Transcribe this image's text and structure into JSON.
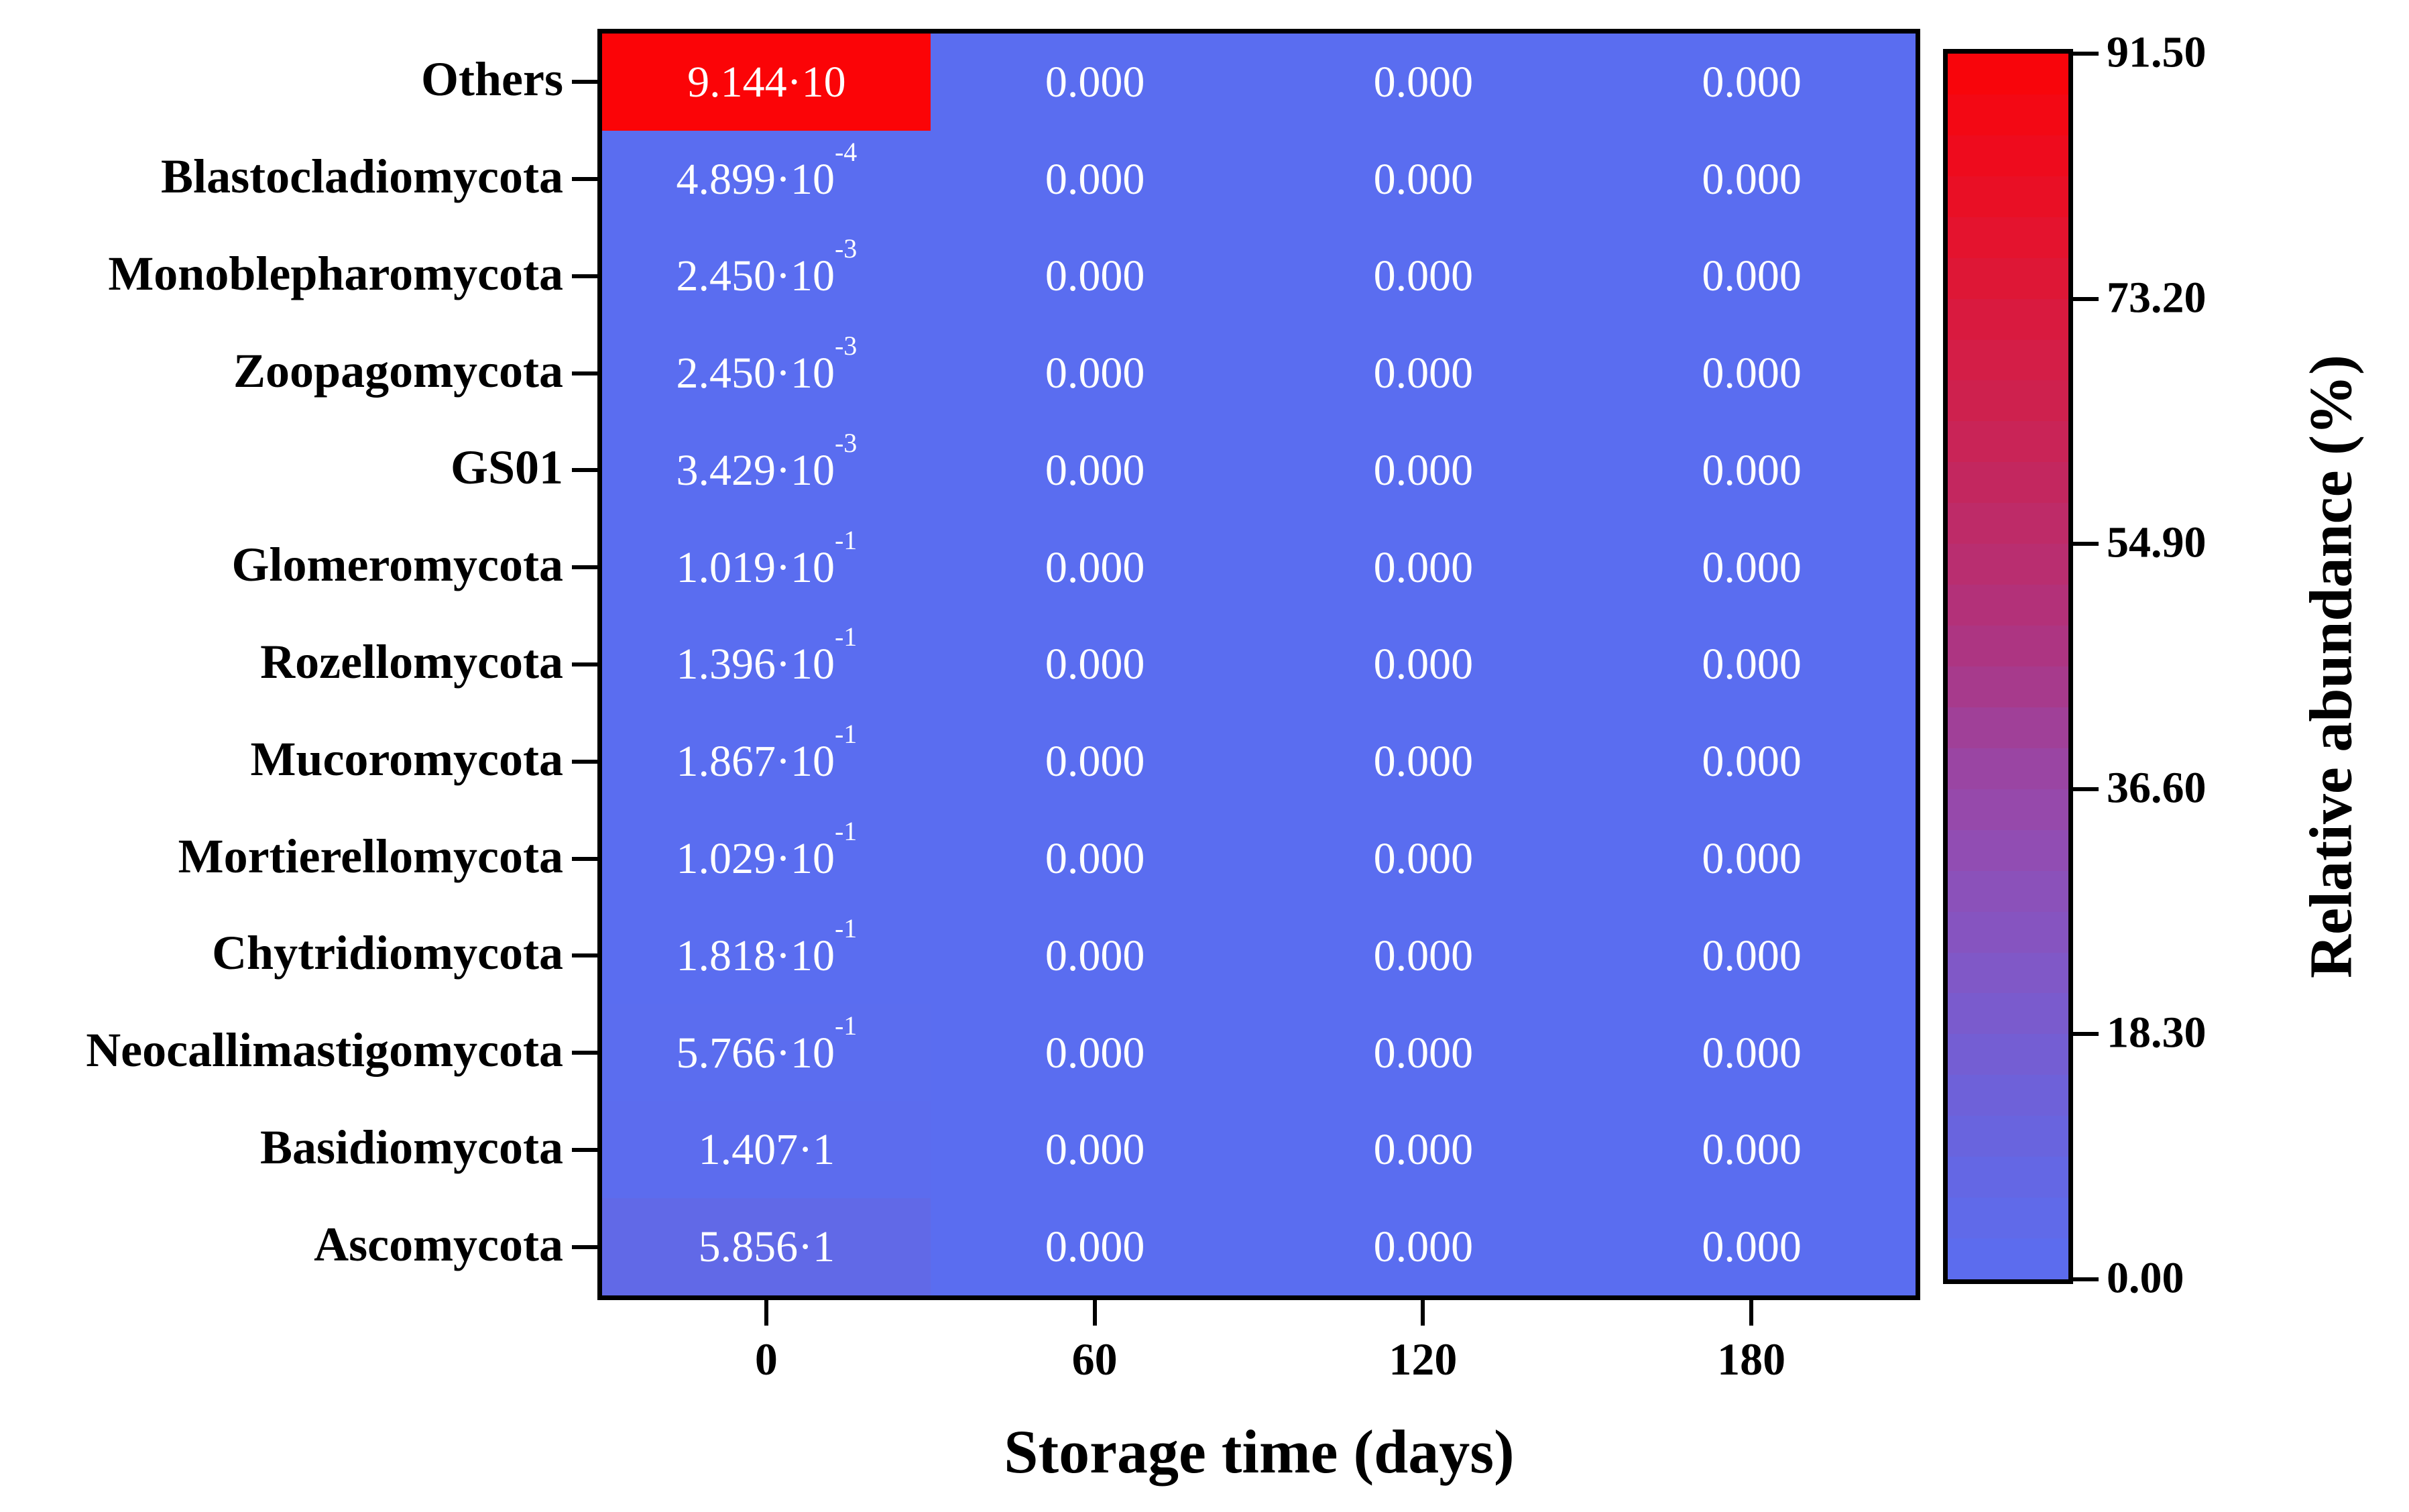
{
  "figure": {
    "x_axis": {
      "title": "Storage time (days)",
      "ticks": [
        "0",
        "60",
        "120",
        "180"
      ]
    },
    "y_axis": {
      "labels": [
        "Others",
        "Blastocladiomycota",
        "Monoblepharomycota",
        "Zoopagomycota",
        "GS01",
        "Glomeromycota",
        "Rozellomycota",
        "Mucoromycota",
        "Mortierellomycota",
        "Chytridiomycota",
        "Neocallimastigomycota",
        "Basidiomycota",
        "Ascomycota"
      ]
    },
    "colorbar": {
      "title": "Relative abundance (%)",
      "tick_labels": [
        "91.50",
        "73.20",
        "54.90",
        "36.60",
        "18.30",
        "0.00"
      ],
      "gradient_stops_bottom_to_top": [
        "#5A6DF0",
        "#6268E6",
        "#6D62DA",
        "#7A5BCD",
        "#8654C0",
        "#924CB1",
        "#9C44A0",
        "#AA3786",
        "#B72F73",
        "#C22861",
        "#CE214F",
        "#D91A3E",
        "#E5122C",
        "#F00A1A",
        "#FB0407"
      ],
      "band_count": 30
    },
    "cells": {
      "zero_label": "0.000",
      "col0_display": [
        {
          "m": "9.144·10",
          "e": ""
        },
        {
          "m": "4.899·10",
          "e": "-4"
        },
        {
          "m": "2.450·10",
          "e": "-3"
        },
        {
          "m": "2.450·10",
          "e": "-3"
        },
        {
          "m": "3.429·10",
          "e": "-3"
        },
        {
          "m": "1.019·10",
          "e": "-1"
        },
        {
          "m": "1.396·10",
          "e": "-1"
        },
        {
          "m": "1.867·10",
          "e": "-1"
        },
        {
          "m": "1.029·10",
          "e": "-1"
        },
        {
          "m": "1.818·10",
          "e": "-1"
        },
        {
          "m": "5.766·10",
          "e": "-1"
        },
        {
          "m": "1.407·1",
          "e": ""
        },
        {
          "m": "5.856·1",
          "e": ""
        }
      ]
    },
    "text_color": "#000000",
    "cell_text_color": "#ffffff"
  },
  "chart_data": {
    "type": "heatmap",
    "title": "",
    "xlabel": "Storage time (days)",
    "colorbar_label": "Relative abundance (%)",
    "columns": [
      0,
      60,
      120,
      180
    ],
    "rows": [
      "Others",
      "Blastocladiomycota",
      "Monoblepharomycota",
      "Zoopagomycota",
      "GS01",
      "Glomeromycota",
      "Rozellomycota",
      "Mucoromycota",
      "Mortierellomycota",
      "Chytridiomycota",
      "Neocallimastigomycota",
      "Basidiomycota",
      "Ascomycota"
    ],
    "values": [
      [
        91.44,
        0,
        0,
        0
      ],
      [
        0.0004899,
        0,
        0,
        0
      ],
      [
        0.00245,
        0,
        0,
        0
      ],
      [
        0.00245,
        0,
        0,
        0
      ],
      [
        0.003429,
        0,
        0,
        0
      ],
      [
        0.1019,
        0,
        0,
        0
      ],
      [
        0.1396,
        0,
        0,
        0
      ],
      [
        0.1867,
        0,
        0,
        0
      ],
      [
        0.1029,
        0,
        0,
        0
      ],
      [
        0.1818,
        0,
        0,
        0
      ],
      [
        0.5766,
        0,
        0,
        0
      ],
      [
        1.407,
        0,
        0,
        0
      ],
      [
        5.856,
        0,
        0,
        0
      ]
    ],
    "value_unit": "%",
    "color_scale": {
      "min": 0.0,
      "max": 91.5,
      "min_color": "#5A6DF0",
      "max_color": "#FB0407"
    },
    "legend_position": "right",
    "grid": false
  }
}
